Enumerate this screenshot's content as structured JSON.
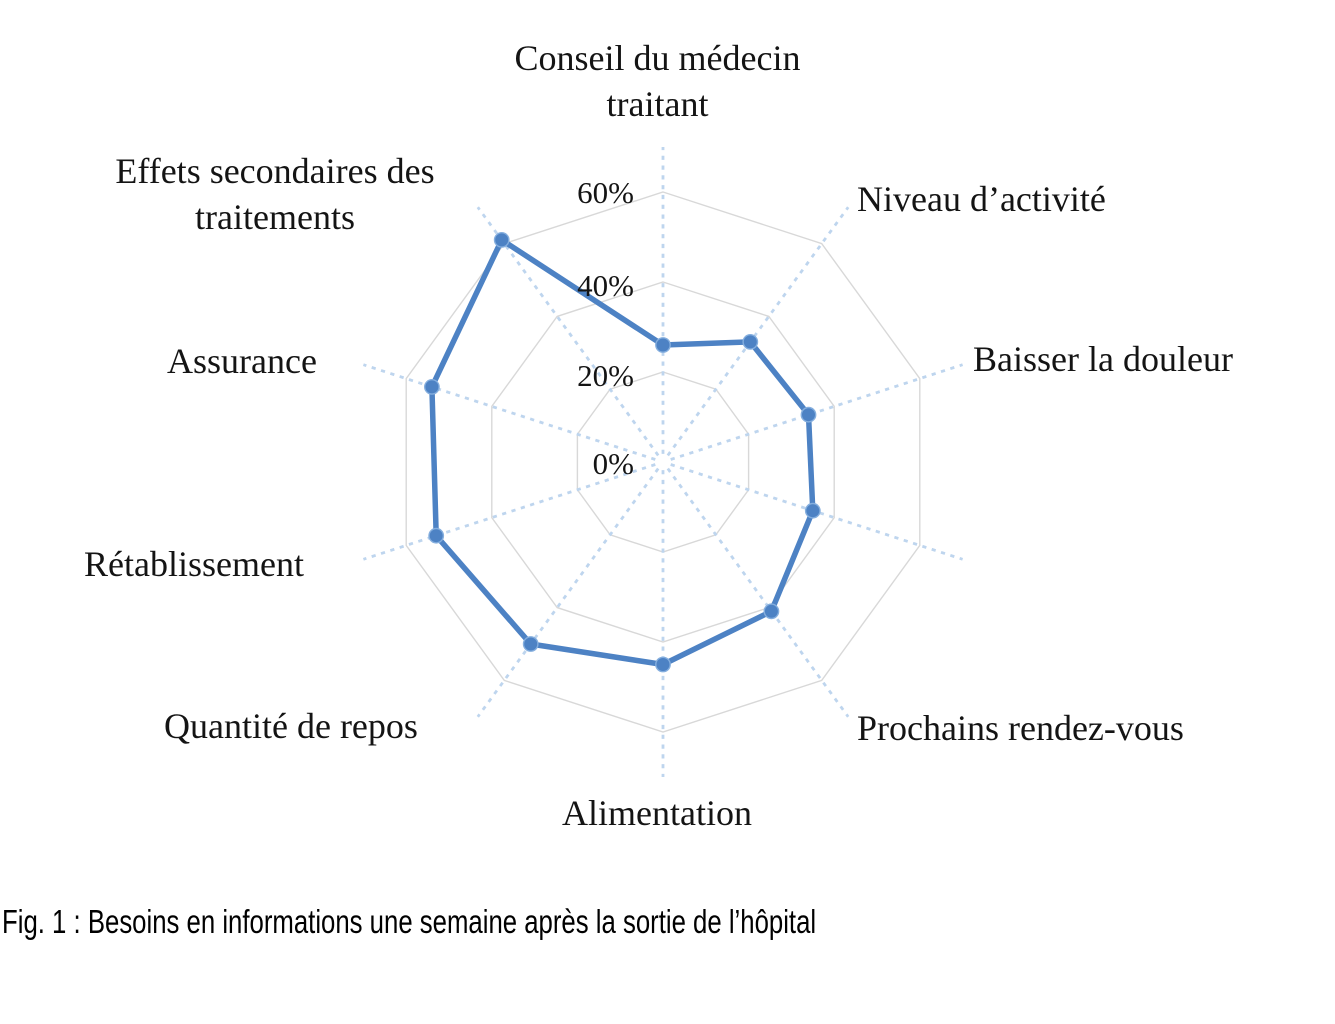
{
  "figure": {
    "caption": "Fig. 1 : Besoins en informations une semaine après la sortie de l’hôpital"
  },
  "chart_data": {
    "type": "radar",
    "unit": "%",
    "direction": "clockwise",
    "start_axis": "top",
    "categories": [
      "Conseil du médecin traitant",
      "Niveau d’activité",
      "Baisser la douleur",
      "",
      "Prochains rendez-vous",
      "Alimentation",
      "Quantité de repos",
      "Rétablissement",
      "Assurance",
      "Effets secondaires des traitements"
    ],
    "values": [
      26,
      33,
      34,
      35,
      41,
      45,
      50,
      53,
      54,
      61
    ],
    "radial_axis": {
      "min": 0,
      "max": 70,
      "tick_interval": 20,
      "tick_labels": [
        "0%",
        "20%",
        "40%",
        "60%"
      ]
    },
    "grid": true,
    "legend": false,
    "colors": {
      "series": "#4d82c4",
      "series_marker_rim": "#84aede",
      "axis_dashed": "#bed5ee",
      "gridline": "#d8d8d8",
      "text": "#141414"
    }
  }
}
